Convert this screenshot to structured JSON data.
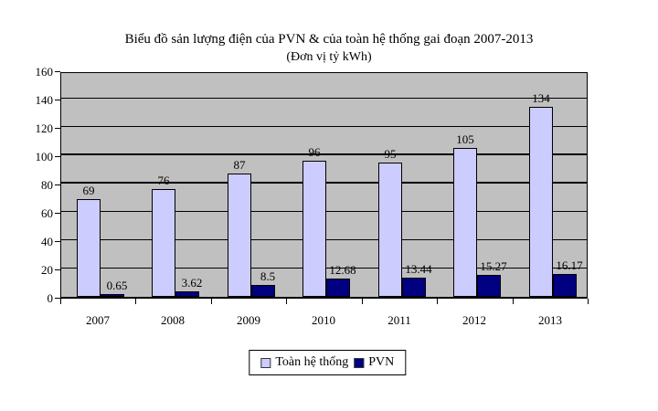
{
  "page": {
    "background": "#FFFFFF"
  },
  "chart_data": {
    "type": "bar",
    "title": "Biểu đồ sản lượng điện của PVN & của toàn hệ thống gai đoạn 2007-2013",
    "subtitle": "(Đơn vị tỷ kWh)",
    "unit": "tỷ kWh",
    "categories": [
      "2007",
      "2008",
      "2009",
      "2010",
      "2011",
      "2012",
      "2013"
    ],
    "series": [
      {
        "name": "Toàn hệ thống",
        "color": "#CCCCFF",
        "values": [
          69,
          76,
          87,
          96,
          95,
          105,
          134
        ],
        "labels": [
          "69",
          "76",
          "87",
          "96",
          "95",
          "105",
          "134"
        ]
      },
      {
        "name": "PVN",
        "color": "#000080",
        "values": [
          0.65,
          3.62,
          8.5,
          12.68,
          13.44,
          15.27,
          16.17
        ],
        "labels": [
          "0.65",
          "3.62",
          "8.5",
          "12.68",
          "13.44",
          "15.27",
          "16.17"
        ]
      }
    ],
    "ylim": [
      0,
      160
    ],
    "yticks": [
      0,
      20,
      40,
      60,
      80,
      100,
      120,
      140,
      160
    ],
    "bold_gridlines": [
      80,
      100
    ],
    "plot_background": "#C0C0C0",
    "gridline_color": "#000000",
    "grid": true,
    "legend_position": "bottom",
    "data_labels": true
  }
}
